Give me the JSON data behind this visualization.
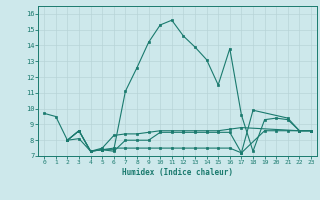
{
  "xlabel": "Humidex (Indice chaleur)",
  "xlim": [
    -0.5,
    23.5
  ],
  "ylim": [
    7,
    16.5
  ],
  "yticks": [
    7,
    8,
    9,
    10,
    11,
    12,
    13,
    14,
    15,
    16
  ],
  "xticks": [
    0,
    1,
    2,
    3,
    4,
    5,
    6,
    7,
    8,
    9,
    10,
    11,
    12,
    13,
    14,
    15,
    16,
    17,
    18,
    19,
    20,
    21,
    22,
    23
  ],
  "bg_color": "#cde8eb",
  "grid_color": "#b8d4d7",
  "line_color": "#1a7a6e",
  "lines": [
    {
      "x": [
        0,
        1,
        2,
        3,
        4,
        5,
        6,
        7,
        8,
        9,
        10,
        11,
        12,
        13,
        14,
        15,
        16,
        17,
        18,
        19,
        20,
        21,
        22,
        23
      ],
      "y": [
        9.7,
        9.5,
        8.0,
        8.6,
        7.3,
        7.4,
        7.4,
        11.1,
        12.6,
        14.2,
        15.3,
        15.6,
        14.6,
        13.9,
        13.1,
        11.5,
        13.8,
        9.6,
        7.3,
        9.3,
        9.4,
        9.3,
        8.6,
        8.6
      ]
    },
    {
      "x": [
        2,
        3,
        4,
        5,
        6,
        7,
        8,
        9,
        10,
        11,
        12,
        13,
        14,
        15,
        16,
        17,
        22,
        23
      ],
      "y": [
        8.0,
        8.6,
        7.3,
        7.5,
        8.3,
        8.4,
        8.4,
        8.5,
        8.6,
        8.6,
        8.6,
        8.6,
        8.6,
        8.6,
        8.7,
        8.8,
        8.6,
        8.6
      ]
    },
    {
      "x": [
        2,
        3,
        4,
        5,
        6,
        7,
        8,
        9,
        10,
        11,
        12,
        13,
        14,
        15,
        16,
        17,
        19,
        20,
        21,
        22,
        23
      ],
      "y": [
        8.0,
        8.6,
        7.3,
        7.4,
        7.3,
        8.0,
        8.0,
        8.0,
        8.5,
        8.5,
        8.5,
        8.5,
        8.5,
        8.5,
        8.5,
        7.2,
        8.6,
        8.6,
        8.6,
        8.6,
        8.6
      ]
    },
    {
      "x": [
        2,
        3,
        4,
        5,
        6,
        7,
        8,
        9,
        10,
        11,
        12,
        13,
        14,
        15,
        16,
        17,
        18,
        21,
        22,
        23
      ],
      "y": [
        8.0,
        8.1,
        7.3,
        7.4,
        7.5,
        7.5,
        7.5,
        7.5,
        7.5,
        7.5,
        7.5,
        7.5,
        7.5,
        7.5,
        7.5,
        7.2,
        9.9,
        9.4,
        8.6,
        8.6
      ]
    }
  ]
}
